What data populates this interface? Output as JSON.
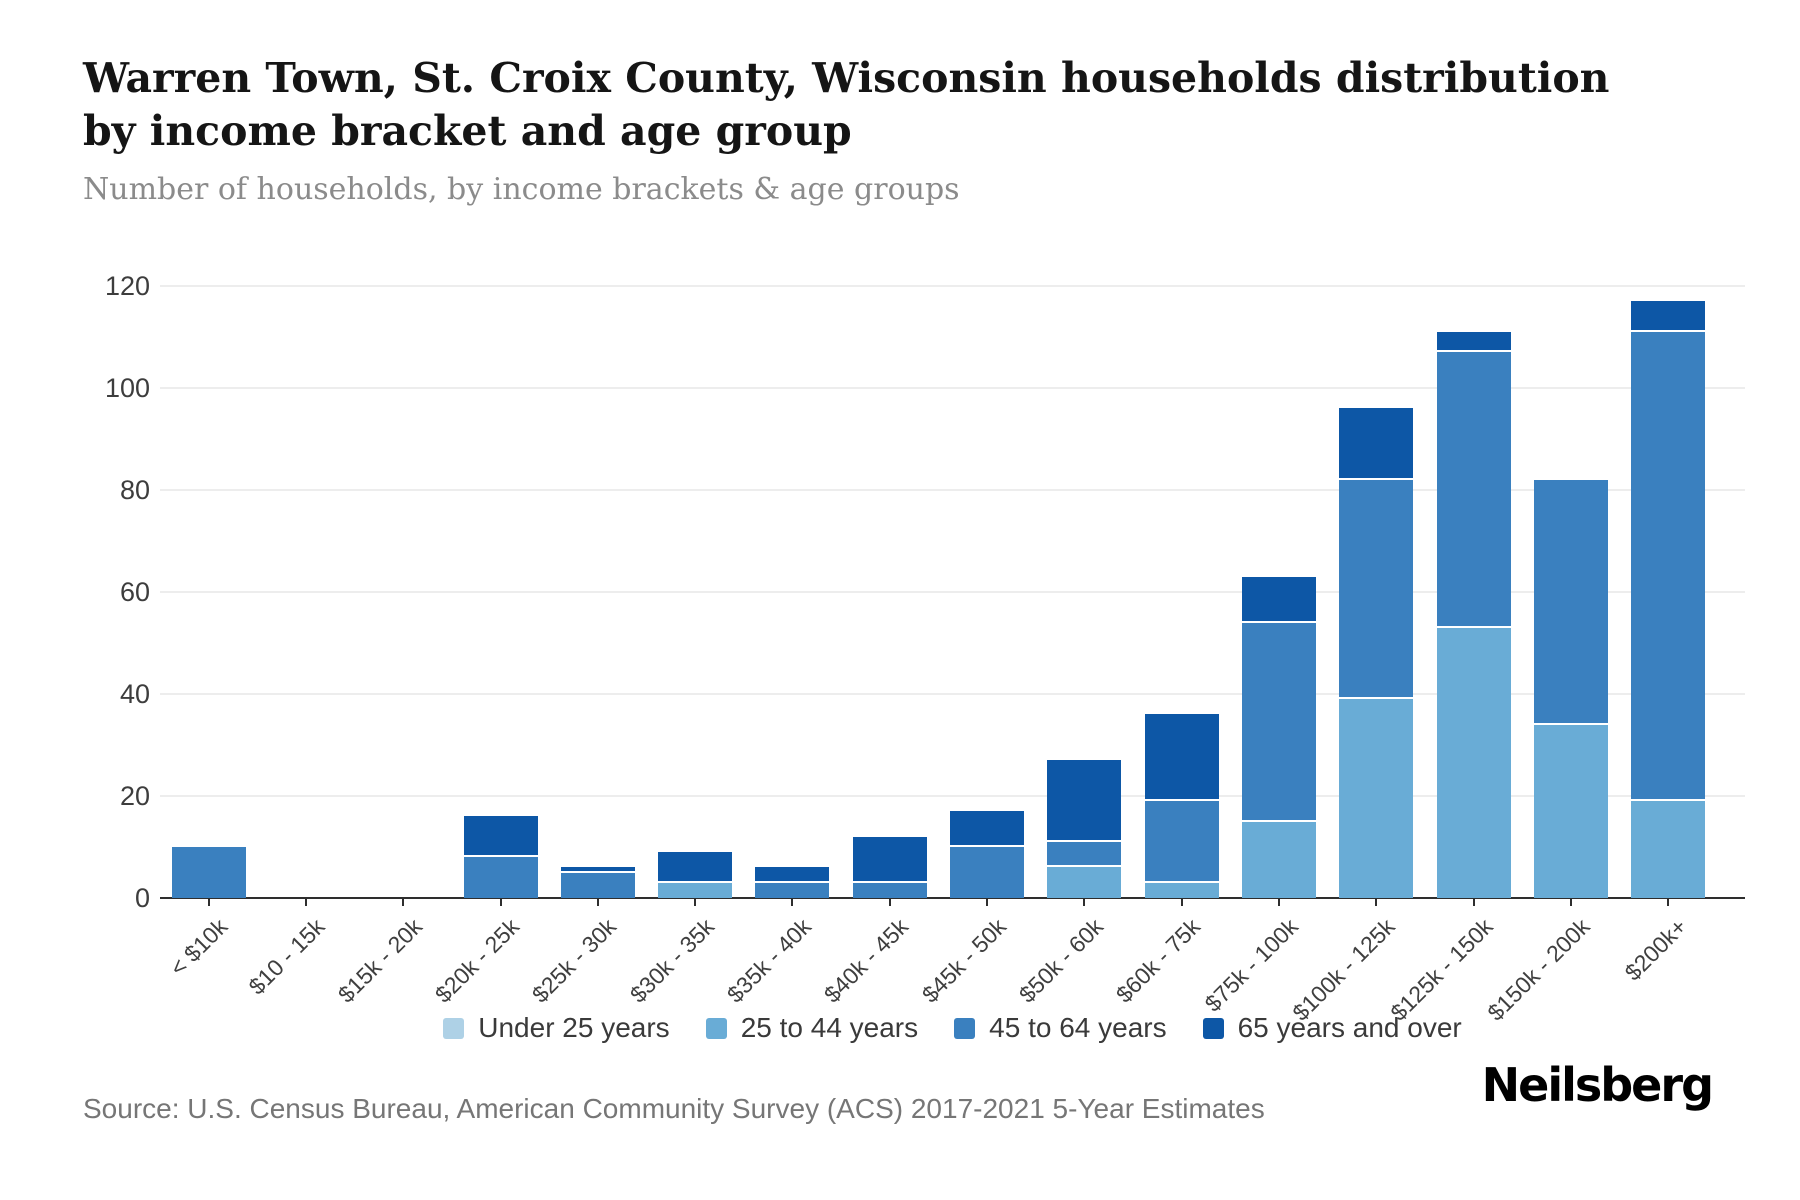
{
  "header": {
    "title_line1": "Warren Town, St. Croix County, Wisconsin households distribution",
    "title_line2": "by income bracket and age group",
    "subtitle": "Number of households, by income brackets & age groups"
  },
  "chart_data": {
    "type": "bar",
    "stacked": true,
    "title": "Warren Town, St. Croix County, Wisconsin households distribution by income bracket and age group",
    "subtitle": "Number of households, by income brackets & age groups",
    "xlabel": "",
    "ylabel": "",
    "ylim": [
      0,
      120
    ],
    "yticks": [
      0,
      20,
      40,
      60,
      80,
      100,
      120
    ],
    "grid": true,
    "legend_position": "bottom",
    "categories": [
      "< $10k",
      "$10 - 15k",
      "$15k - 20k",
      "$20k - 25k",
      "$25k - 30k",
      "$30k - 35k",
      "$35k - 40k",
      "$40k - 45k",
      "$45k - 50k",
      "$50k - 60k",
      "$60k - 75k",
      "$75k - 100k",
      "$100k - 125k",
      "$125k - 150k",
      "$150k - 200k",
      "$200k+"
    ],
    "series": [
      {
        "name": "Under 25 years",
        "color": "#aed1e6",
        "values": [
          0,
          0,
          0,
          0,
          0,
          0,
          0,
          0,
          0,
          0,
          0,
          0,
          0,
          0,
          0,
          0
        ]
      },
      {
        "name": "25 to 44 years",
        "color": "#69acd6",
        "values": [
          0,
          0,
          0,
          0,
          0,
          3,
          0,
          0,
          0,
          6,
          3,
          15,
          39,
          53,
          34,
          19
        ]
      },
      {
        "name": "45 to 64 years",
        "color": "#3a80bf",
        "values": [
          10,
          0,
          0,
          8,
          5,
          0,
          3,
          3,
          10,
          5,
          16,
          39,
          43,
          54,
          48,
          92
        ]
      },
      {
        "name": "65 years and over",
        "color": "#0d57a6",
        "values": [
          0,
          0,
          0,
          8,
          1,
          6,
          3,
          9,
          7,
          16,
          17,
          9,
          14,
          4,
          0,
          6
        ]
      }
    ],
    "totals": [
      10,
      0,
      0,
      16,
      6,
      9,
      6,
      12,
      17,
      27,
      36,
      63,
      96,
      111,
      82,
      117
    ]
  },
  "footer": {
    "source": "Source: U.S. Census Bureau, American Community Survey (ACS) 2017-2021 5-Year Estimates",
    "logo": "Neilsberg"
  }
}
